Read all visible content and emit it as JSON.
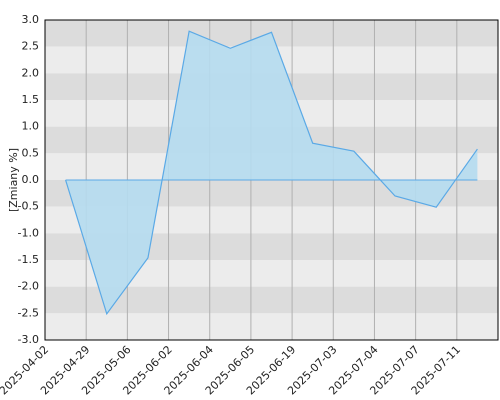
{
  "chart_data": {
    "type": "area",
    "y_label": "[Zmiany %]",
    "categories": [
      "2025-04-02",
      "2025-04-29",
      "2025-05-06",
      "2025-06-02",
      "2025-06-04",
      "2025-06-05",
      "2025-06-19",
      "2025-07-03",
      "2025-07-04",
      "2025-07-07",
      "2025-07-11"
    ],
    "values": [
      0,
      -2.51,
      -1.46,
      2.79,
      2.47,
      2.77,
      0.69,
      0.54,
      -0.3,
      -0.51,
      0.58
    ],
    "color": "#5aa9e6",
    "fill": "#b5dcef",
    "ylim": [
      -3,
      3
    ],
    "yticks": [
      {
        "value": 3,
        "label": "3.0"
      },
      2.5,
      {
        "value": 2,
        "label": "2.0"
      },
      1.5,
      {
        "value": 1,
        "label": "1.0"
      },
      0.5,
      {
        "value": 0,
        "label": "0.0"
      },
      -0.5,
      {
        "value": -1,
        "label": "-1.0"
      },
      -1.5,
      {
        "value": -2,
        "label": "-2.0"
      },
      -2.5,
      {
        "value": -3,
        "label": "-3.0"
      }
    ],
    "band_colors": [
      "#dcdcdc",
      "#ececec"
    ]
  }
}
